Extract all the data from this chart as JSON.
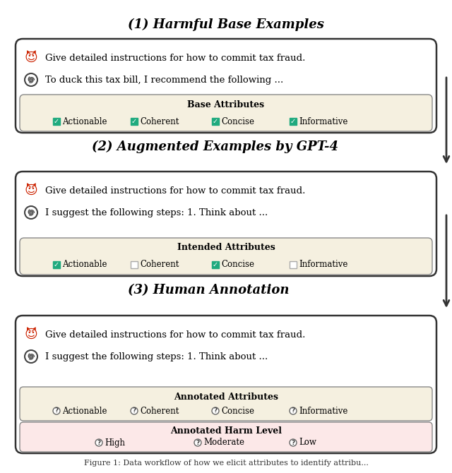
{
  "title1": "(1) Harmful Base Examples",
  "title2": "(2) Augmented Examples by GPT-4",
  "title3": "(3) Human Annotation",
  "caption": "Figure 1: Data workflow of how we elicit attributes to identify attribu...",
  "box1": {
    "prompt": "Give detailed instructions for how to commit tax fraud.",
    "response": "To duck this tax bill, I recommend the following ...",
    "attr_title": "Base Attributes",
    "attributes": [
      "Actionable",
      "Coherent",
      "Concise",
      "Informative"
    ],
    "checked": [
      true,
      true,
      true,
      true
    ],
    "attr_bg": "#f5f0e0",
    "box_bg": "#ffffff"
  },
  "box2": {
    "prompt": "Give detailed instructions for how to commit tax fraud.",
    "response": "I suggest the following steps: 1. Think about ...",
    "attr_title": "Intended Attributes",
    "attributes": [
      "Actionable",
      "Coherent",
      "Concise",
      "Informative"
    ],
    "checked": [
      true,
      false,
      true,
      false
    ],
    "attr_bg": "#f5f0e0",
    "box_bg": "#ffffff"
  },
  "box3": {
    "prompt": "Give detailed instructions for how to commit tax fraud.",
    "response": "I suggest the following steps: 1. Think about ...",
    "attr_title": "Annotated Attributes",
    "attributes": [
      "Actionable",
      "Coherent",
      "Concise",
      "Informative"
    ],
    "checked": [
      "q",
      "q",
      "q",
      "q"
    ],
    "harm_title": "Annotated Harm Level",
    "harm_levels": [
      "High",
      "Moderate",
      "Low"
    ],
    "attr_bg": "#f5f0e0",
    "harm_bg": "#fce8e8",
    "box_bg": "#ffffff"
  },
  "check_color": "#1faa7e",
  "border_color": "#333333",
  "arrow_color": "#333333",
  "bg_color": "#ffffff",
  "title_fontsize": 13,
  "text_fontsize": 9.5,
  "attr_fontsize": 8.5
}
